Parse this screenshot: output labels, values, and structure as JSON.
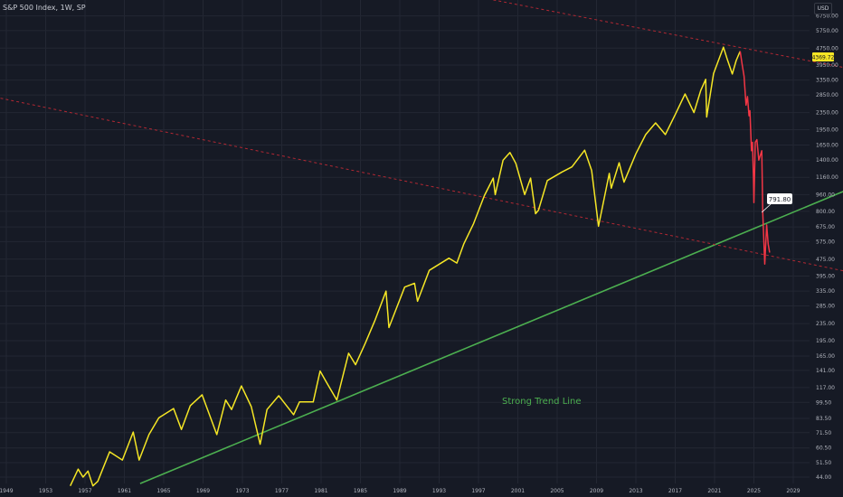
{
  "chart_data": {
    "type": "line",
    "title": "S&P 500 Index, 1W, SP",
    "currency": "USD",
    "y_scale": "log",
    "ylim": [
      40,
      8000
    ],
    "xlim": [
      1948.4,
      2031.5
    ],
    "grid": true,
    "x_ticks": [
      1949,
      1953,
      1957,
      1961,
      1965,
      1969,
      1973,
      1977,
      1981,
      1985,
      1989,
      1993,
      1997,
      2001,
      2005,
      2009,
      2013,
      2017,
      2021,
      2025,
      2029
    ],
    "y_ticks": [
      "6750.00",
      "5750.00",
      "4750.00",
      "3950.00",
      "3350.00",
      "2850.00",
      "2350.00",
      "1950.00",
      "1650.00",
      "1400.00",
      "1160.00",
      "960.00",
      "800.00",
      "675.00",
      "575.00",
      "475.00",
      "395.00",
      "335.00",
      "285.00",
      "235.00",
      "195.00",
      "165.00",
      "141.00",
      "117.00",
      "99.50",
      "83.50",
      "71.50",
      "60.50",
      "51.50",
      "44.00"
    ],
    "series": [
      {
        "color": "#f5e625",
        "points": [
          [
            1955.5,
            40
          ],
          [
            1956.3,
            48
          ],
          [
            1956.8,
            44
          ],
          [
            1957.3,
            47
          ],
          [
            1957.8,
            40
          ],
          [
            1958.3,
            42
          ],
          [
            1959.5,
            58
          ],
          [
            1960.8,
            53
          ],
          [
            1961.9,
            72
          ],
          [
            1962.5,
            53
          ],
          [
            1963.5,
            70
          ],
          [
            1964.5,
            84
          ],
          [
            1966.0,
            93
          ],
          [
            1966.8,
            74
          ],
          [
            1967.7,
            96
          ],
          [
            1968.9,
            108
          ],
          [
            1970.4,
            70
          ],
          [
            1971.3,
            102
          ],
          [
            1971.9,
            92
          ],
          [
            1972.9,
            119
          ],
          [
            1973.9,
            95
          ],
          [
            1974.8,
            63
          ],
          [
            1975.5,
            92
          ],
          [
            1976.7,
            107
          ],
          [
            1978.2,
            87
          ],
          [
            1978.8,
            100
          ],
          [
            1980.2,
            100
          ],
          [
            1980.9,
            140
          ],
          [
            1981.5,
            125
          ],
          [
            1982.6,
            102
          ],
          [
            1983.8,
            170
          ],
          [
            1984.5,
            150
          ],
          [
            1985.5,
            190
          ],
          [
            1986.5,
            245
          ],
          [
            1987.6,
            335
          ],
          [
            1987.9,
            225
          ],
          [
            1989.5,
            350
          ],
          [
            1990.5,
            365
          ],
          [
            1990.8,
            300
          ],
          [
            1992,
            420
          ],
          [
            1994,
            480
          ],
          [
            1994.8,
            455
          ],
          [
            1995.5,
            560
          ],
          [
            1996.5,
            700
          ],
          [
            1997.6,
            950
          ],
          [
            1998.5,
            1150
          ],
          [
            1998.7,
            960
          ],
          [
            1999.5,
            1400
          ],
          [
            2000.2,
            1520
          ],
          [
            2000.8,
            1350
          ],
          [
            2001.7,
            960
          ],
          [
            2002.3,
            1150
          ],
          [
            2002.8,
            780
          ],
          [
            2003.1,
            810
          ],
          [
            2004,
            1120
          ],
          [
            2005.5,
            1230
          ],
          [
            2006.5,
            1300
          ],
          [
            2007.8,
            1560
          ],
          [
            2008.5,
            1250
          ],
          [
            2009.2,
            680
          ],
          [
            2010.3,
            1210
          ],
          [
            2010.5,
            1030
          ],
          [
            2011.3,
            1360
          ],
          [
            2011.8,
            1100
          ],
          [
            2013,
            1500
          ],
          [
            2014,
            1850
          ],
          [
            2015,
            2100
          ],
          [
            2016,
            1850
          ],
          [
            2017,
            2300
          ],
          [
            2018,
            2880
          ],
          [
            2018.9,
            2350
          ],
          [
            2019.6,
            3000
          ],
          [
            2020.1,
            3380
          ],
          [
            2020.2,
            2240
          ],
          [
            2020.9,
            3600
          ],
          [
            2021.9,
            4800
          ],
          [
            2022.3,
            4200
          ],
          [
            2022.8,
            3580
          ],
          [
            2023.2,
            4150
          ],
          [
            2023.6,
            4590
          ]
        ]
      },
      {
        "color": "#f23645",
        "points": [
          [
            2023.6,
            4590
          ],
          [
            2023.8,
            4000
          ],
          [
            2024.0,
            3500
          ],
          [
            2024.2,
            2550
          ],
          [
            2024.35,
            2800
          ],
          [
            2024.5,
            2270
          ],
          [
            2024.6,
            2400
          ],
          [
            2024.75,
            1550
          ],
          [
            2024.85,
            1700
          ],
          [
            2024.95,
            1160
          ],
          [
            2025.0,
            880
          ],
          [
            2025.14,
            1700
          ],
          [
            2025.3,
            1750
          ],
          [
            2025.5,
            1400
          ],
          [
            2025.8,
            1550
          ],
          [
            2025.9,
            785
          ],
          [
            2026.1,
            450
          ],
          [
            2026.3,
            690
          ],
          [
            2026.45,
            560
          ],
          [
            2026.6,
            510
          ]
        ]
      }
    ],
    "trend_lines": [
      {
        "color": "#4caf50",
        "style": "solid",
        "from": [
          1962.6,
          41
        ],
        "to": [
          2034.1,
          995
        ]
      },
      {
        "color": "#b22833",
        "style": "dashed",
        "from": [
          1998.5,
          8040
        ],
        "to": [
          2034.1,
          3850
        ]
      },
      {
        "color": "#b22833",
        "style": "dashed",
        "from": [
          1948.4,
          2750
        ],
        "to": [
          2034.1,
          418
        ]
      }
    ],
    "annotations": [
      {
        "text": "Strong Trend Line",
        "color": "#4caf50"
      },
      {
        "text": "791.80",
        "at": [
          2025.8,
          791.8
        ]
      }
    ],
    "last_price": {
      "text": "4369.72",
      "value": 4369.72,
      "color": "#f5e625"
    }
  }
}
